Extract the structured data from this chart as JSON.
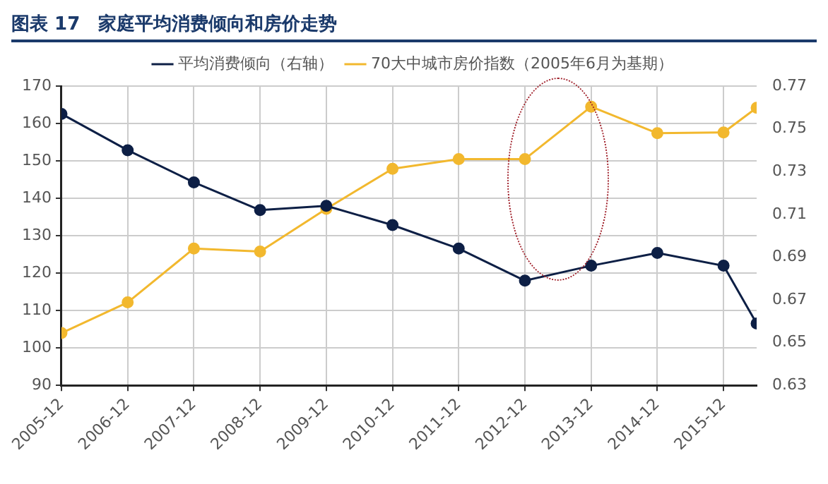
{
  "chart_data": {
    "type": "line",
    "title": "图表 17　家庭平均消费倾向和房价走势",
    "x": [
      "2005-12",
      "2006-12",
      "2007-12",
      "2008-12",
      "2009-12",
      "2010-12",
      "2011-12",
      "2012-12",
      "2013-12",
      "2014-12",
      "2015-12",
      "2016-06"
    ],
    "series": [
      {
        "name": "70大中城市房价指数（2005年6月为基期）",
        "color": "#f2b82e",
        "values": [
          104,
          112.2,
          126.6,
          125.8,
          137.2,
          147.9,
          150.5,
          150.5,
          164.5,
          157.4,
          157.6,
          164.2
        ]
      },
      {
        "name": "平均消费倾向（右轴）",
        "color": "#0d1f45",
        "axis": "y2",
        "values": [
          0.757,
          0.74,
          0.725,
          0.712,
          0.714,
          0.705,
          0.694,
          0.679,
          0.686,
          0.692,
          0.686,
          0.659
        ]
      }
    ],
    "xlim": [
      "2005-12",
      "2016-06"
    ],
    "xticks": [
      {
        "value": "2005-12",
        "label": "2005-12"
      },
      {
        "value": "2006-12",
        "label": "2006-12"
      },
      {
        "value": "2007-12",
        "label": "2007-12"
      },
      {
        "value": "2008-12",
        "label": "2008-12"
      },
      {
        "value": "2009-12",
        "label": "2009-12"
      },
      {
        "value": "2010-12",
        "label": "2010-12"
      },
      {
        "value": "2011-12",
        "label": "2011-12"
      },
      {
        "value": "2012-12",
        "label": "2012-12"
      },
      {
        "value": "2013-12",
        "label": "2013-12"
      },
      {
        "value": "2014-12",
        "label": "2014-12"
      },
      {
        "value": "2015-12",
        "label": "2015-12"
      }
    ],
    "ylim": [
      90,
      170
    ],
    "yticks": [
      90,
      100,
      110,
      120,
      130,
      140,
      150,
      160,
      170
    ],
    "y2lim": [
      0.63,
      0.77
    ],
    "y2ticks": [
      0.63,
      0.65,
      0.67,
      0.69,
      0.71,
      0.73,
      0.75,
      0.77
    ],
    "grid": true,
    "legend": "top",
    "marker": "circle",
    "line_style": "solid"
  }
}
